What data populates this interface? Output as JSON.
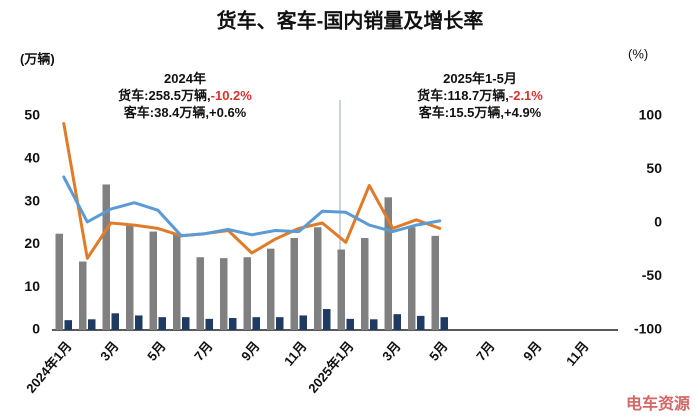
{
  "chart_data": {
    "type": "bar",
    "title": "货车、客车-国内销量及增长率",
    "y_unit": "(万辆)",
    "y2_unit": "(%)",
    "categories": [
      "2024年1月",
      null,
      "3月",
      null,
      "5月",
      null,
      "7月",
      null,
      "9月",
      null,
      "11月",
      null,
      "2025年1月",
      null,
      "3月",
      null,
      "5月",
      null,
      "7月",
      null,
      "9月",
      null,
      "11月",
      null
    ],
    "series": [
      {
        "type": "bar",
        "axis": "y",
        "color": "#808080",
        "values": [
          22.5,
          16,
          34,
          24.5,
          23,
          22.5,
          17,
          16.8,
          17,
          19,
          21.5,
          24,
          18.8,
          21.5,
          31,
          24,
          22,
          null,
          null,
          null,
          null,
          null,
          null,
          null
        ]
      },
      {
        "type": "bar",
        "axis": "y",
        "color": "#1f3b63",
        "values": [
          2.3,
          2.5,
          3.9,
          3.4,
          3,
          3,
          2.6,
          2.8,
          3,
          3,
          3.4,
          4.9,
          2.6,
          2.5,
          3.7,
          3.3,
          3,
          null,
          null,
          null,
          null,
          null,
          null,
          null
        ]
      },
      {
        "type": "line",
        "axis": "y2",
        "color": "#e07b2a",
        "values": [
          93,
          -33,
          0,
          -2,
          -5,
          -12,
          -10,
          -7,
          -28,
          -15,
          -5,
          0,
          -18,
          35,
          -5,
          3,
          -5,
          null,
          null,
          null,
          null,
          null,
          null,
          null
        ]
      },
      {
        "type": "line",
        "axis": "y2",
        "color": "#5b9bd5",
        "values": [
          43,
          1,
          13,
          19,
          12,
          -12,
          -10,
          -6,
          -11,
          -7,
          -8,
          11,
          10,
          -2,
          -8,
          -2,
          2,
          null,
          null,
          null,
          null,
          null,
          null,
          null
        ]
      }
    ],
    "ylim": [
      0,
      50
    ],
    "yticks": [
      0,
      10,
      20,
      30,
      40,
      50
    ],
    "y2lim": [
      -100,
      100
    ],
    "y2ticks": [
      -100,
      -50,
      0,
      50,
      100
    ],
    "grid": false,
    "annotations": [
      [
        [
          {
            "text": "2024年"
          }
        ],
        [
          {
            "text": "货车:258.5万辆,"
          },
          {
            "text": "-10.2%",
            "color": "#d9342b"
          }
        ],
        [
          {
            "text": "客车:38.4万辆,+0.6%"
          }
        ]
      ],
      [
        [
          {
            "text": "2025年1-5月"
          }
        ],
        [
          {
            "text": "货车:118.7万辆,"
          },
          {
            "text": "-2.1%",
            "color": "#d9342b"
          }
        ],
        [
          {
            "text": "客车:15.5万辆,+4.9%"
          }
        ]
      ]
    ],
    "watermark": "电车资源"
  }
}
